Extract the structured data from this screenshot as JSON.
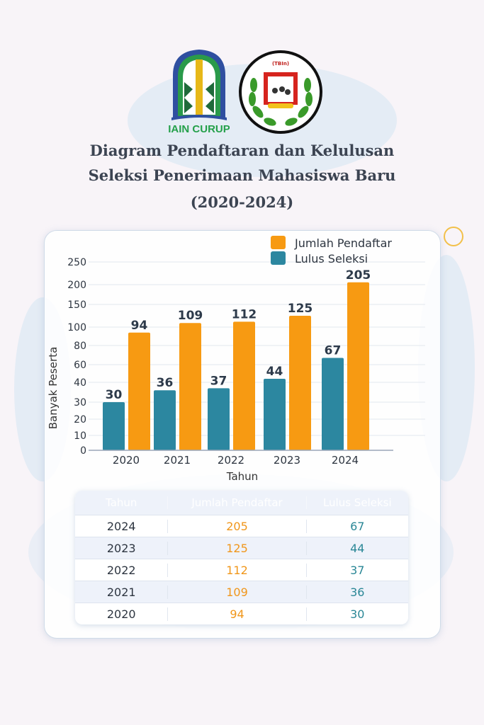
{
  "logos": {
    "left_text": "IAIN CURUP",
    "right_text": "TADRIS BAHASA INDONESIA (TBIn) IAIN CURUP"
  },
  "title": {
    "line1": "Diagram Pendaftaran dan Kelulusan",
    "line2": "Seleksi Penerimaan Mahasiswa Baru",
    "line3": "(2020-2024)"
  },
  "colors": {
    "orange": "#f79a12",
    "teal": "#2c87a0"
  },
  "chart_data": {
    "type": "bar",
    "categories": [
      "2020",
      "2021",
      "2022",
      "2023",
      "2024"
    ],
    "series": [
      {
        "name": "Lulus Seleksi",
        "values": [
          30,
          36,
          37,
          44,
          67
        ],
        "color": "#2c87a0"
      },
      {
        "name": "Jumlah Pendaftar",
        "values": [
          94,
          109,
          112,
          125,
          205
        ],
        "color": "#f79a12"
      }
    ],
    "legend_order": [
      "Jumlah Pendaftar",
      "Lulus Seleksi"
    ],
    "xlabel": "Tahun",
    "ylabel": "Banyak Peserta",
    "yticks": [
      0,
      10,
      20,
      30,
      40,
      60,
      80,
      100,
      150,
      200,
      250
    ],
    "ylim": [
      0,
      250
    ],
    "grid": true,
    "legend": "top-right",
    "data_labels": true
  },
  "table": {
    "headers": [
      "Tahun",
      "Jumlah Pendaftar",
      "Lulus Seleksi"
    ],
    "rows": [
      [
        "2024",
        "205",
        "67"
      ],
      [
        "2023",
        "125",
        "44"
      ],
      [
        "2022",
        "112",
        "37"
      ],
      [
        "2021",
        "109",
        "36"
      ],
      [
        "2020",
        "94",
        "30"
      ]
    ]
  }
}
